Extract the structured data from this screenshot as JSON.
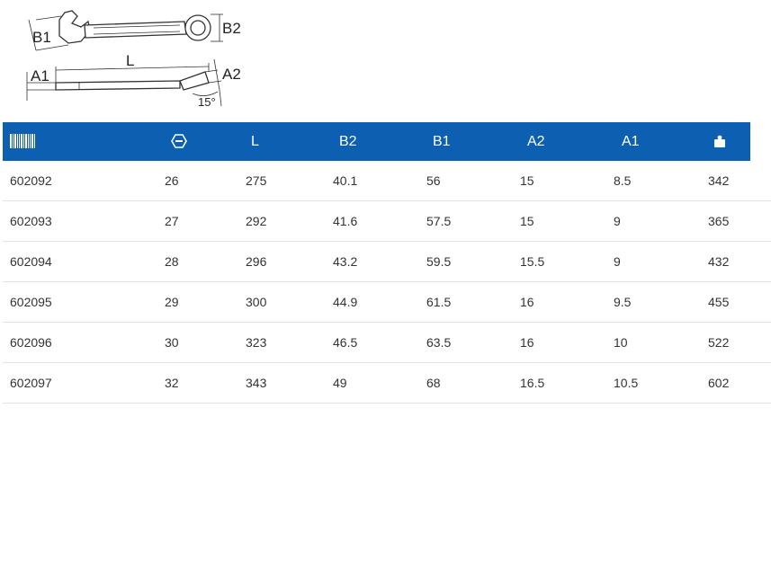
{
  "diagram": {
    "label_b1": "B1",
    "label_b2": "B2",
    "label_a1": "A1",
    "label_a2": "A2",
    "label_l": "L",
    "label_angle": "15°"
  },
  "table": {
    "columns": [
      {
        "key": "article",
        "label": "",
        "icon": "barcode-icon"
      },
      {
        "key": "size",
        "label": "",
        "icon": "hex-nut-icon"
      },
      {
        "key": "l",
        "label": "L"
      },
      {
        "key": "b2",
        "label": "B2"
      },
      {
        "key": "b1",
        "label": "B1"
      },
      {
        "key": "a2",
        "label": "A2"
      },
      {
        "key": "a1",
        "label": "A1"
      },
      {
        "key": "weight",
        "label": "",
        "icon": "weight-icon"
      }
    ],
    "rows": [
      [
        "602092",
        "26",
        "275",
        "40.1",
        "56",
        "15",
        "8.5",
        "342"
      ],
      [
        "602093",
        "27",
        "292",
        "41.6",
        "57.5",
        "15",
        "9",
        "365"
      ],
      [
        "602094",
        "28",
        "296",
        "43.2",
        "59.5",
        "15.5",
        "9",
        "432"
      ],
      [
        "602095",
        "29",
        "300",
        "44.9",
        "61.5",
        "16",
        "9.5",
        "455"
      ],
      [
        "602096",
        "30",
        "323",
        "46.5",
        "63.5",
        "16",
        "10",
        "522"
      ],
      [
        "602097",
        "32",
        "343",
        "49",
        "68",
        "16.5",
        "10.5",
        "602"
      ]
    ],
    "header_color": "#0d5fb2"
  }
}
